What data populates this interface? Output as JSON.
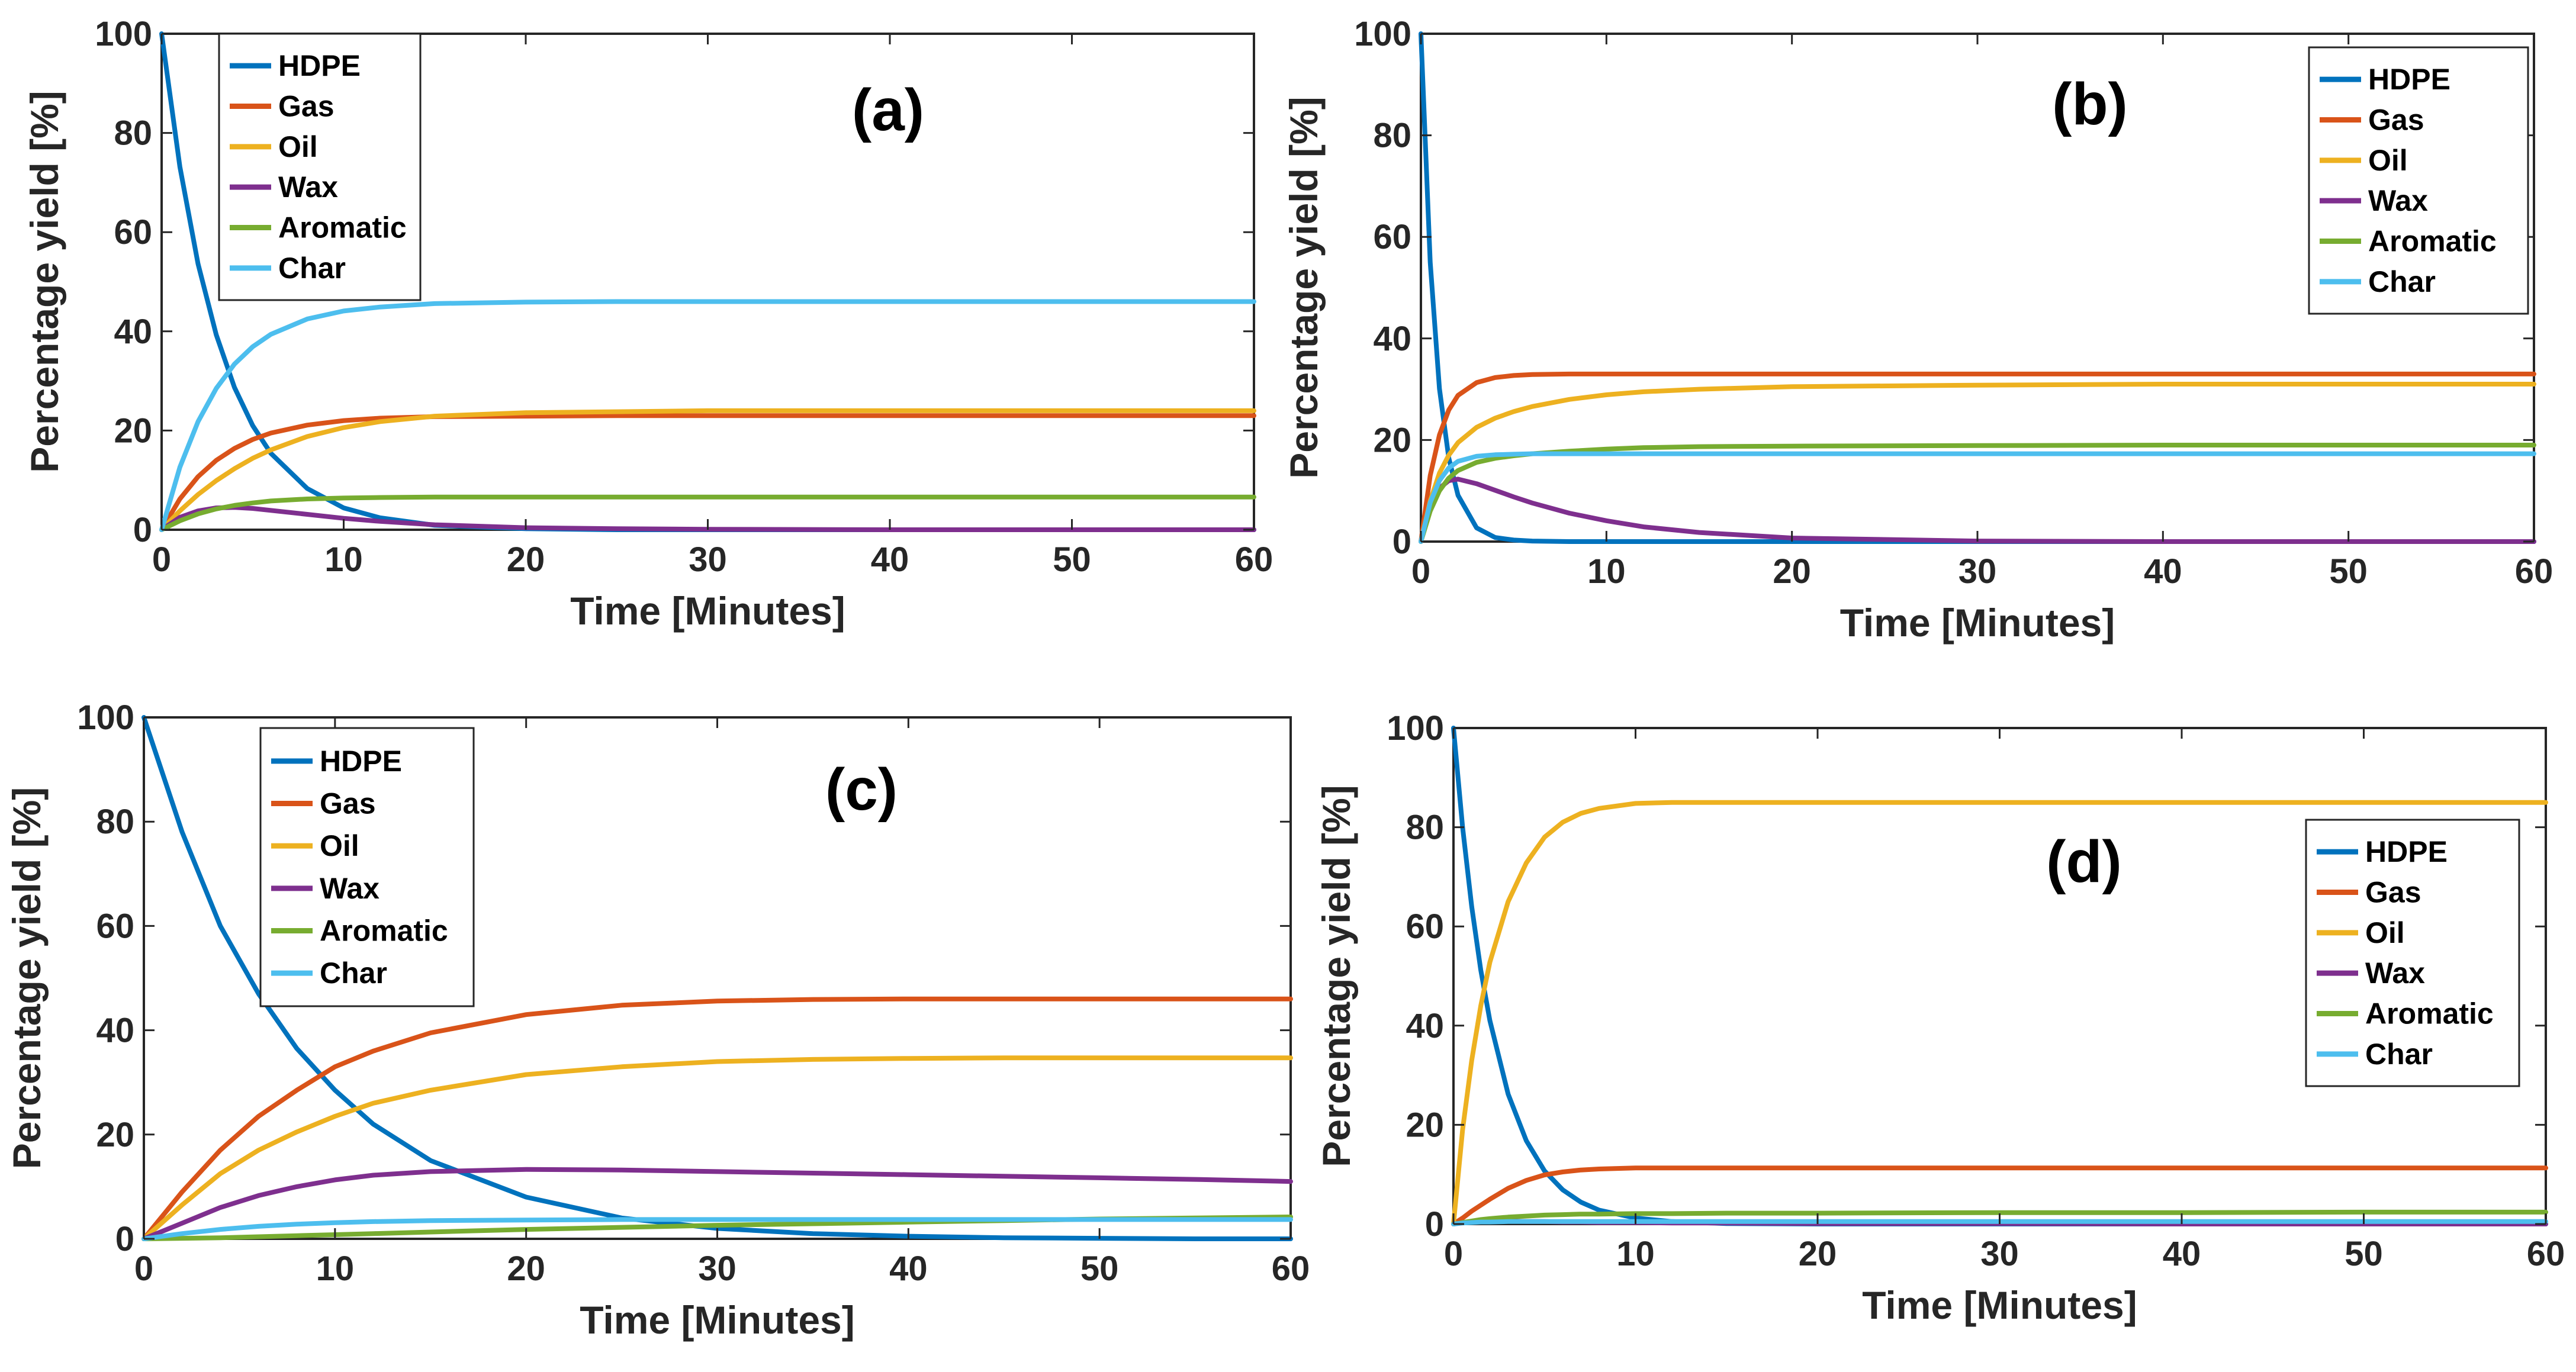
{
  "colors": {
    "HDPE": "#0072BD",
    "Gas": "#D95319",
    "Oil": "#EDB120",
    "Wax": "#7E2F8E",
    "Aromatic": "#77AC30",
    "Char": "#4DBEEE",
    "axis": "#262626"
  },
  "chart_data": [
    {
      "panel": "(a)",
      "type": "line",
      "xlabel": "Time [Minutes]",
      "ylabel": "Percentage yield [%]",
      "xlim": [
        0,
        60
      ],
      "ylim": [
        0,
        100
      ],
      "xticks": [
        0,
        10,
        20,
        30,
        40,
        50,
        60
      ],
      "yticks": [
        0,
        20,
        40,
        60,
        80,
        100
      ],
      "legend_position": "top-left",
      "x": [
        0,
        1,
        2,
        3,
        4,
        5,
        6,
        8,
        10,
        12,
        15,
        20,
        25,
        30,
        40,
        50,
        60
      ],
      "series": [
        {
          "name": "HDPE",
          "values": [
            100,
            73.2,
            53.6,
            39.3,
            28.7,
            21.0,
            15.4,
            8.3,
            4.4,
            2.4,
            0.9,
            0.2,
            0,
            0,
            0,
            0,
            0
          ]
        },
        {
          "name": "Gas",
          "values": [
            0,
            6.2,
            10.7,
            14.0,
            16.4,
            18.2,
            19.5,
            21.1,
            22.0,
            22.5,
            22.8,
            22.9,
            23.0,
            23.0,
            23.0,
            23.0,
            23.0
          ]
        },
        {
          "name": "Oil",
          "values": [
            0,
            3.8,
            7.1,
            9.9,
            12.3,
            14.4,
            16.1,
            18.8,
            20.6,
            21.8,
            22.9,
            23.6,
            23.8,
            24.0,
            24.0,
            24.0,
            24.0
          ]
        },
        {
          "name": "Wax",
          "values": [
            0,
            2.5,
            3.8,
            4.4,
            4.5,
            4.3,
            3.9,
            3.1,
            2.3,
            1.7,
            1.0,
            0.4,
            0.2,
            0.1,
            0,
            0,
            0
          ]
        },
        {
          "name": "Aromatic",
          "values": [
            0,
            1.8,
            3.2,
            4.2,
            4.9,
            5.4,
            5.8,
            6.2,
            6.4,
            6.5,
            6.6,
            6.6,
            6.6,
            6.6,
            6.6,
            6.6,
            6.6
          ]
        },
        {
          "name": "Char",
          "values": [
            0,
            12.6,
            21.8,
            28.5,
            33.4,
            36.9,
            39.4,
            42.5,
            44.1,
            44.9,
            45.6,
            45.9,
            46.0,
            46.0,
            46.0,
            46.0,
            46.0
          ]
        }
      ]
    },
    {
      "panel": "(b)",
      "type": "line",
      "xlabel": "Time [Minutes]",
      "ylabel": "Percentage yield [%]",
      "xlim": [
        0,
        60
      ],
      "ylim": [
        0,
        100
      ],
      "xticks": [
        0,
        10,
        20,
        30,
        40,
        50,
        60
      ],
      "yticks": [
        0,
        20,
        40,
        60,
        80,
        100
      ],
      "legend_position": "top-right",
      "x": [
        0,
        0.5,
        1,
        1.5,
        2,
        3,
        4,
        5,
        6,
        8,
        10,
        12,
        15,
        20,
        30,
        40,
        50,
        60
      ],
      "series": [
        {
          "name": "HDPE",
          "values": [
            100,
            55.0,
            30.1,
            16.5,
            9.1,
            2.7,
            0.8,
            0.3,
            0.1,
            0,
            0,
            0,
            0,
            0,
            0,
            0,
            0,
            0
          ]
        },
        {
          "name": "Gas",
          "values": [
            0,
            13.0,
            21.0,
            25.9,
            28.8,
            31.3,
            32.3,
            32.7,
            32.9,
            33.0,
            33.0,
            33.0,
            33.0,
            33.0,
            33.0,
            33.0,
            33.0,
            33.0
          ]
        },
        {
          "name": "Oil",
          "values": [
            0,
            8.0,
            13.5,
            17.0,
            19.5,
            22.5,
            24.3,
            25.6,
            26.6,
            28.0,
            28.9,
            29.5,
            30.0,
            30.5,
            30.8,
            31.0,
            31.0,
            31.0
          ]
        },
        {
          "name": "Wax",
          "values": [
            0,
            7.0,
            10.5,
            12.0,
            12.3,
            11.4,
            10.1,
            8.8,
            7.6,
            5.6,
            4.1,
            2.9,
            1.8,
            0.7,
            0.1,
            0,
            0,
            0
          ]
        },
        {
          "name": "Aromatic",
          "values": [
            0,
            6.0,
            10.0,
            12.5,
            14.0,
            15.6,
            16.4,
            16.9,
            17.3,
            17.8,
            18.2,
            18.5,
            18.7,
            18.8,
            18.9,
            19.0,
            19.0,
            19.0
          ]
        },
        {
          "name": "Char",
          "values": [
            0,
            7.7,
            12.0,
            14.5,
            15.8,
            16.8,
            17.1,
            17.2,
            17.3,
            17.3,
            17.3,
            17.3,
            17.3,
            17.3,
            17.3,
            17.3,
            17.3,
            17.3
          ]
        }
      ]
    },
    {
      "panel": "(c)",
      "type": "line",
      "xlabel": "Time [Minutes]",
      "ylabel": "Percentage yield [%]",
      "xlim": [
        0,
        60
      ],
      "ylim": [
        0,
        100
      ],
      "xticks": [
        0,
        10,
        20,
        30,
        40,
        50,
        60
      ],
      "yticks": [
        0,
        20,
        40,
        60,
        80,
        100
      ],
      "legend_position": "top-left",
      "x": [
        0,
        2,
        4,
        6,
        8,
        10,
        12,
        15,
        20,
        25,
        30,
        35,
        40,
        45,
        50,
        55,
        60
      ],
      "series": [
        {
          "name": "HDPE",
          "values": [
            100,
            78.0,
            60.0,
            47.0,
            36.5,
            28.5,
            22.0,
            15.0,
            8.0,
            4.0,
            2.0,
            1.0,
            0.5,
            0.2,
            0.1,
            0,
            0
          ]
        },
        {
          "name": "Gas",
          "values": [
            0,
            9.0,
            17.0,
            23.5,
            28.5,
            33.0,
            36.0,
            39.5,
            43.0,
            44.8,
            45.6,
            45.9,
            46.0,
            46.0,
            46.0,
            46.0,
            46.0
          ]
        },
        {
          "name": "Oil",
          "values": [
            0,
            6.5,
            12.5,
            17.0,
            20.5,
            23.5,
            26.0,
            28.5,
            31.5,
            33.0,
            34.0,
            34.4,
            34.6,
            34.7,
            34.7,
            34.7,
            34.7
          ]
        },
        {
          "name": "Wax",
          "values": [
            0,
            3.0,
            6.0,
            8.3,
            10.0,
            11.3,
            12.2,
            12.9,
            13.3,
            13.2,
            12.9,
            12.6,
            12.3,
            12.0,
            11.7,
            11.4,
            11.0
          ]
        },
        {
          "name": "Aromatic",
          "values": [
            0,
            0.1,
            0.2,
            0.4,
            0.6,
            0.8,
            1.0,
            1.3,
            1.8,
            2.2,
            2.6,
            2.9,
            3.2,
            3.5,
            3.8,
            4.0,
            4.2
          ]
        },
        {
          "name": "Char",
          "values": [
            0,
            1.0,
            1.8,
            2.4,
            2.8,
            3.1,
            3.3,
            3.5,
            3.6,
            3.7,
            3.7,
            3.7,
            3.7,
            3.7,
            3.7,
            3.7,
            3.7
          ]
        }
      ]
    },
    {
      "panel": "(d)",
      "type": "line",
      "xlabel": "Time [Minutes]",
      "ylabel": "Percentage yield [%]",
      "xlim": [
        0,
        60
      ],
      "ylim": [
        0,
        100
      ],
      "xticks": [
        0,
        10,
        20,
        30,
        40,
        50,
        60
      ],
      "yticks": [
        0,
        20,
        40,
        60,
        80,
        100
      ],
      "legend_position": "right",
      "x": [
        0,
        0.5,
        1,
        1.5,
        2,
        3,
        4,
        5,
        6,
        7,
        8,
        10,
        12,
        15,
        20,
        30,
        40,
        50,
        60
      ],
      "series": [
        {
          "name": "HDPE",
          "values": [
            100,
            80.0,
            64.0,
            51.2,
            41.0,
            26.2,
            16.8,
            10.7,
            6.9,
            4.4,
            2.8,
            1.2,
            0.5,
            0.1,
            0,
            0,
            0,
            0,
            0
          ]
        },
        {
          "name": "Gas",
          "values": [
            0,
            1.2,
            2.6,
            3.8,
            5.0,
            7.2,
            8.8,
            9.9,
            10.5,
            10.9,
            11.1,
            11.3,
            11.3,
            11.3,
            11.3,
            11.3,
            11.3,
            11.3,
            11.3
          ]
        },
        {
          "name": "Oil",
          "values": [
            0,
            19.0,
            33.0,
            44.0,
            52.8,
            65.0,
            72.8,
            78.0,
            81.0,
            82.8,
            83.8,
            84.8,
            85.0,
            85.0,
            85.0,
            85.0,
            85.0,
            85.0,
            85.0
          ]
        },
        {
          "name": "Wax",
          "values": [
            0,
            0.3,
            0.5,
            0.6,
            0.6,
            0.6,
            0.5,
            0.5,
            0.4,
            0.4,
            0.3,
            0.3,
            0.2,
            0.2,
            0.1,
            0.1,
            0,
            0,
            0
          ]
        },
        {
          "name": "Aromatic",
          "values": [
            0,
            0.3,
            0.6,
            0.9,
            1.1,
            1.4,
            1.6,
            1.8,
            1.9,
            2.0,
            2.0,
            2.1,
            2.1,
            2.2,
            2.2,
            2.3,
            2.3,
            2.4,
            2.4
          ]
        },
        {
          "name": "Char",
          "values": [
            0,
            0.2,
            0.3,
            0.4,
            0.4,
            0.5,
            0.5,
            0.5,
            0.5,
            0.5,
            0.5,
            0.5,
            0.5,
            0.5,
            0.5,
            0.5,
            0.5,
            0.5,
            0.5
          ]
        }
      ]
    }
  ]
}
